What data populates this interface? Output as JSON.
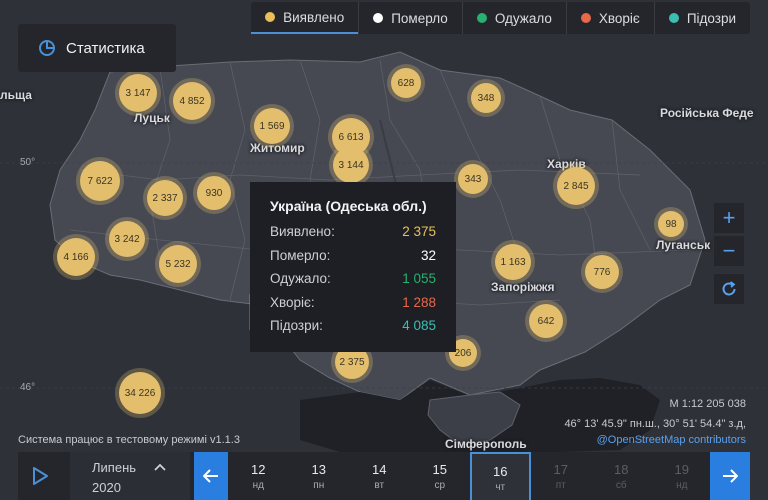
{
  "tabs": [
    {
      "label": "Виявлено",
      "color": "#e8c05a"
    },
    {
      "label": "Померло",
      "color": "#ffffff"
    },
    {
      "label": "Одужало",
      "color": "#27b06e"
    },
    {
      "label": "Хворіє",
      "color": "#e8684a"
    },
    {
      "label": "Підозри",
      "color": "#3bbfb3"
    }
  ],
  "stats_button": {
    "label": "Статистика"
  },
  "city_labels": {
    "lutsk": "Луцьк",
    "zhytomyr": "Житомир",
    "kharkiv": "Харків",
    "luhansk": "Луганськ",
    "zaporizhzhia": "Запоріжжя",
    "simferopol": "Сімферополь",
    "russia": "Російська Феде",
    "poland_edge": "льща"
  },
  "latitude_labels": {
    "top": "50°",
    "bottom": "46°"
  },
  "clusters": {
    "c1": "3 147",
    "c2": "4 852",
    "c3": "1 569",
    "c4": "6 613",
    "c5": "628",
    "c6": "348",
    "c7": "3 144",
    "c8": "7 622",
    "c9": "2 337",
    "c10": "930",
    "c11": "343",
    "c12": "2 845",
    "c13": "98",
    "c14": "4 166",
    "c15": "3 242",
    "c16": "5 232",
    "c17": "1 163",
    "c18": "776",
    "c19": "642",
    "c20": "2 375",
    "c21": "206",
    "c22": "34 226"
  },
  "tooltip": {
    "title": "Україна (Одеська обл.)",
    "rows": [
      {
        "label": "Виявлено:",
        "value": "2 375",
        "color": "#e8c05a"
      },
      {
        "label": "Померло:",
        "value": "32",
        "color": "#ffffff"
      },
      {
        "label": "Одужало:",
        "value": "1 055",
        "color": "#27b06e"
      },
      {
        "label": "Хворіє:",
        "value": "1 288",
        "color": "#e8684a"
      },
      {
        "label": "Підозри:",
        "value": "4 085",
        "color": "#3bbfb3"
      }
    ]
  },
  "zoom": {
    "in": "+",
    "out": "−"
  },
  "scale": "M 1:12 205 038",
  "coords": "46° 13' 45.9\" пн.ш., 30° 51' 54.4\" з.д,",
  "attribution": "@OpenStreetMap contributors",
  "notice": "Система працює в тестовому режимі v1.1.3",
  "timeline": {
    "month": "Липень",
    "year": "2020",
    "days": [
      {
        "num": "12",
        "wd": "нд"
      },
      {
        "num": "13",
        "wd": "пн"
      },
      {
        "num": "14",
        "wd": "вт"
      },
      {
        "num": "15",
        "wd": "ср"
      },
      {
        "num": "16",
        "wd": "чт"
      },
      {
        "num": "17",
        "wd": "пт"
      },
      {
        "num": "18",
        "wd": "сб"
      },
      {
        "num": "19",
        "wd": "нд"
      }
    ]
  }
}
